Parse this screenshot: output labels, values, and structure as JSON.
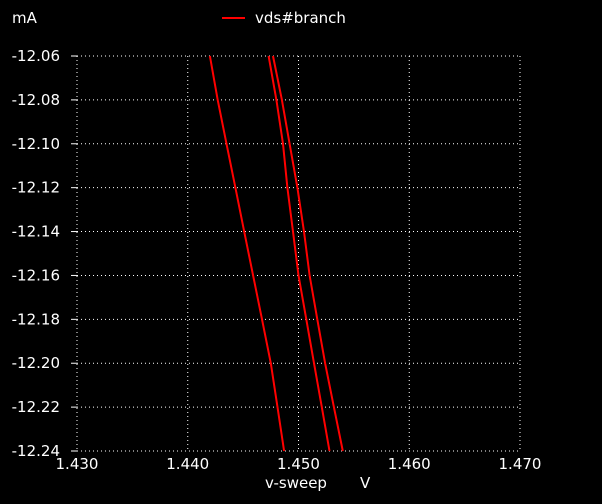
{
  "chart_data": {
    "type": "line",
    "y_unit": "mA",
    "xlabel": "v-sweep",
    "x_unit": "V",
    "legend": [
      {
        "name": "vds#branch",
        "color": "#ff0000"
      }
    ],
    "xlim": [
      1.43,
      1.47
    ],
    "ylim": [
      -12.24,
      -12.06
    ],
    "x_ticks": [
      "1.430",
      "1.440",
      "1.450",
      "1.460",
      "1.470"
    ],
    "y_ticks": [
      "-12.06",
      "-12.08",
      "-12.10",
      "-12.12",
      "-12.14",
      "-12.16",
      "-12.18",
      "-12.20",
      "-12.22",
      "-12.24"
    ],
    "grid": true,
    "series": [
      {
        "name": "vds#branch",
        "color": "#ff0000",
        "x": [
          1.442,
          1.4427,
          1.4435,
          1.4443,
          1.4451,
          1.4459,
          1.4467,
          1.4475,
          1.4481
        ],
        "y": [
          -12.06,
          -12.08,
          -12.1,
          -12.12,
          -12.14,
          -12.16,
          -12.18,
          -12.2,
          -12.22
        ]
      },
      {
        "name": "vds#branch",
        "color": "#ff0000",
        "x": [
          1.4473,
          1.448,
          1.4486,
          1.449,
          1.4495,
          1.45,
          1.4507,
          1.4514,
          1.4521
        ],
        "y": [
          -12.06,
          -12.08,
          -12.1,
          -12.12,
          -12.14,
          -12.16,
          -12.18,
          -12.2,
          -12.22
        ]
      },
      {
        "name": "vds#branch",
        "color": "#ff0000",
        "x": [
          1.4477,
          1.4485,
          1.4492,
          1.4499,
          1.4505,
          1.451,
          1.4517,
          1.4524,
          1.4532
        ],
        "y": [
          -12.06,
          -12.08,
          -12.1,
          -12.12,
          -12.14,
          -12.16,
          -12.18,
          -12.2,
          -12.22
        ]
      }
    ]
  }
}
